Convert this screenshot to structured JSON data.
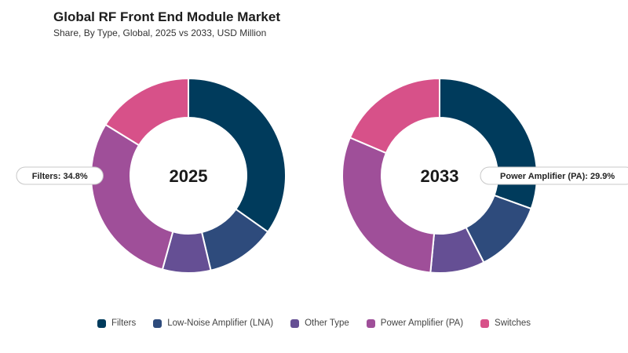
{
  "header": {
    "title": "Global RF Front End Module Market",
    "subtitle": "Share, By Type, Global, 2025 vs 2033, USD Million"
  },
  "chart_data": [
    {
      "type": "pie",
      "center_label": "2025",
      "categories": [
        "Filters",
        "Low-Noise Amplifier (LNA)",
        "Other Type",
        "Power Amplifier (PA)",
        "Switches"
      ],
      "values": [
        34.8,
        11.5,
        8.0,
        29.5,
        16.2
      ],
      "callout": {
        "label": "Filters: 34.8%",
        "category_index": 0
      }
    },
    {
      "type": "pie",
      "center_label": "2033",
      "categories": [
        "Filters",
        "Low-Noise Amplifier (LNA)",
        "Other Type",
        "Power Amplifier (PA)",
        "Switches"
      ],
      "values": [
        30.5,
        12.0,
        9.0,
        29.9,
        18.6
      ],
      "callout": {
        "label": "Power Amplifier (PA): 29.9%",
        "category_index": 3
      }
    }
  ],
  "legend": [
    {
      "label": "Filters",
      "color": "#003b5c"
    },
    {
      "label": "Low-Noise Amplifier (LNA)",
      "color": "#2e4b7c"
    },
    {
      "label": "Other Type",
      "color": "#654f94"
    },
    {
      "label": "Power Amplifier (PA)",
      "color": "#9f4f99"
    },
    {
      "label": "Switches",
      "color": "#d75189"
    }
  ]
}
